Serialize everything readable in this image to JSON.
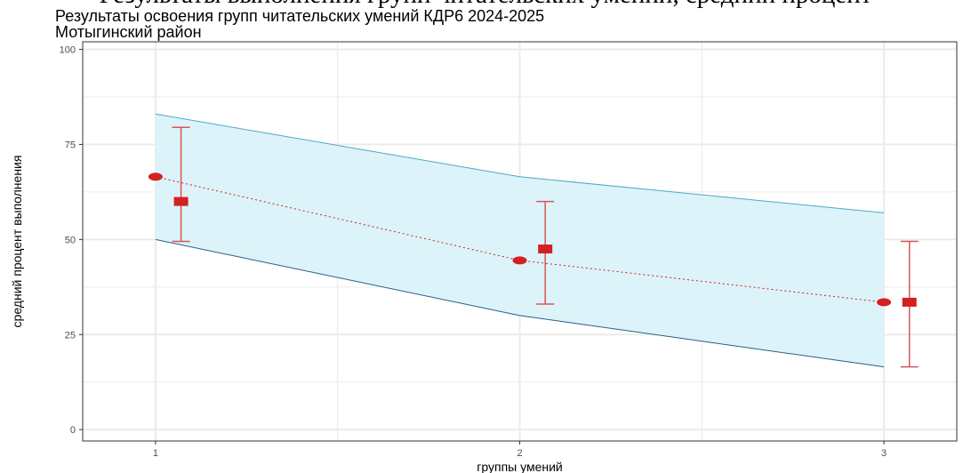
{
  "page": {
    "cropped_heading": "Результаты выполнения групп читательских умений, средний процент"
  },
  "chart_data": {
    "type": "line",
    "title": "Результаты освоения групп читательских умений КДР6 2024-2025",
    "subtitle": "Мотыгинский район",
    "xlabel": "группы умений",
    "ylabel": "средний процент выполнения",
    "x_ticks": [
      "1",
      "2",
      "3"
    ],
    "y_ticks": [
      "0",
      "25",
      "50",
      "75",
      "100"
    ],
    "xlim": [
      0.8,
      3.2
    ],
    "ylim": [
      -3,
      102
    ],
    "grid": true,
    "legend": "none",
    "band": {
      "x": [
        1,
        2,
        3
      ],
      "upper": [
        83,
        66.5,
        57
      ],
      "lower": [
        50,
        30,
        16.5
      ]
    },
    "series": [
      {
        "marker": "circle",
        "line": "dotted",
        "x": [
          1,
          2,
          3
        ],
        "values": [
          66.5,
          44.5,
          33.5
        ]
      },
      {
        "marker": "square",
        "x": [
          1.07,
          2.07,
          3.07
        ],
        "values": [
          60,
          47.5,
          33.5
        ],
        "error_low": [
          49.5,
          33,
          16.5
        ],
        "error_high": [
          79.5,
          60,
          49.5
        ]
      }
    ],
    "colors": {
      "band_fill": "#dcf3f9",
      "band_upper_line": "#4fa8c4",
      "band_lower_line": "#2a5f88",
      "points": "#d42020",
      "errorbars": "#d95555",
      "grid": "#ebebeb",
      "panel_border": "#333333"
    }
  }
}
